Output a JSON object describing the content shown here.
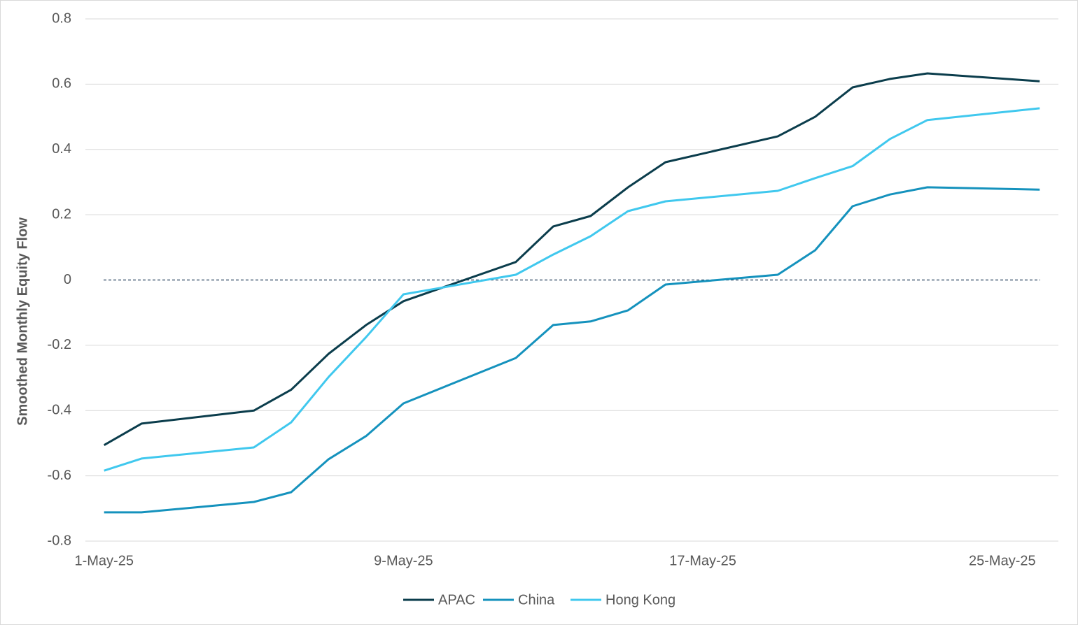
{
  "chart_data": {
    "type": "line",
    "y_label": "Smoothed Monthly Equity  Flow",
    "x": [
      "1-May-25",
      "2-May-25",
      "5-May-25",
      "6-May-25",
      "7-May-25",
      "8-May-25",
      "9-May-25",
      "12-May-25",
      "13-May-25",
      "14-May-25",
      "15-May-25",
      "16-May-25",
      "19-May-25",
      "20-May-25",
      "21-May-25",
      "22-May-25",
      "23-May-25",
      "26-May-25"
    ],
    "series": [
      {
        "name": "APAC",
        "color": "#0b3d4c",
        "values": [
          -0.506,
          -0.44,
          -0.4,
          -0.336,
          -0.226,
          -0.138,
          -0.065,
          0.055,
          0.164,
          0.196,
          0.284,
          0.361,
          0.44,
          0.5,
          0.59,
          0.616,
          0.633,
          0.609
        ]
      },
      {
        "name": "China",
        "color": "#1592bd",
        "values": [
          -0.712,
          -0.712,
          -0.68,
          -0.65,
          -0.549,
          -0.478,
          -0.378,
          -0.239,
          -0.138,
          -0.127,
          -0.093,
          -0.014,
          0.016,
          0.091,
          0.226,
          0.262,
          0.284,
          0.277
        ]
      },
      {
        "name": "Hong Kong",
        "color": "#40c8ee",
        "values": [
          -0.584,
          -0.547,
          -0.513,
          -0.436,
          -0.297,
          -0.175,
          -0.044,
          0.016,
          0.078,
          0.134,
          0.211,
          0.241,
          0.273,
          0.312,
          0.349,
          0.432,
          0.49,
          0.526
        ]
      }
    ],
    "xlim": [
      "1-May-25",
      "26-May-25"
    ],
    "xticks": [
      "1-May-25",
      "9-May-25",
      "17-May-25",
      "25-May-25"
    ],
    "ylim": [
      -0.8,
      0.8
    ],
    "yticks": [
      {
        "value": -0.8,
        "label": "-0.8"
      },
      {
        "value": -0.6,
        "label": "-0.6"
      },
      {
        "value": -0.4,
        "label": "-0.4"
      },
      {
        "value": -0.2,
        "label": "-0.2"
      },
      0,
      0.2,
      0.4,
      0.6,
      0.8
    ],
    "grid": true,
    "zero_line": true,
    "legend": "bottom"
  }
}
